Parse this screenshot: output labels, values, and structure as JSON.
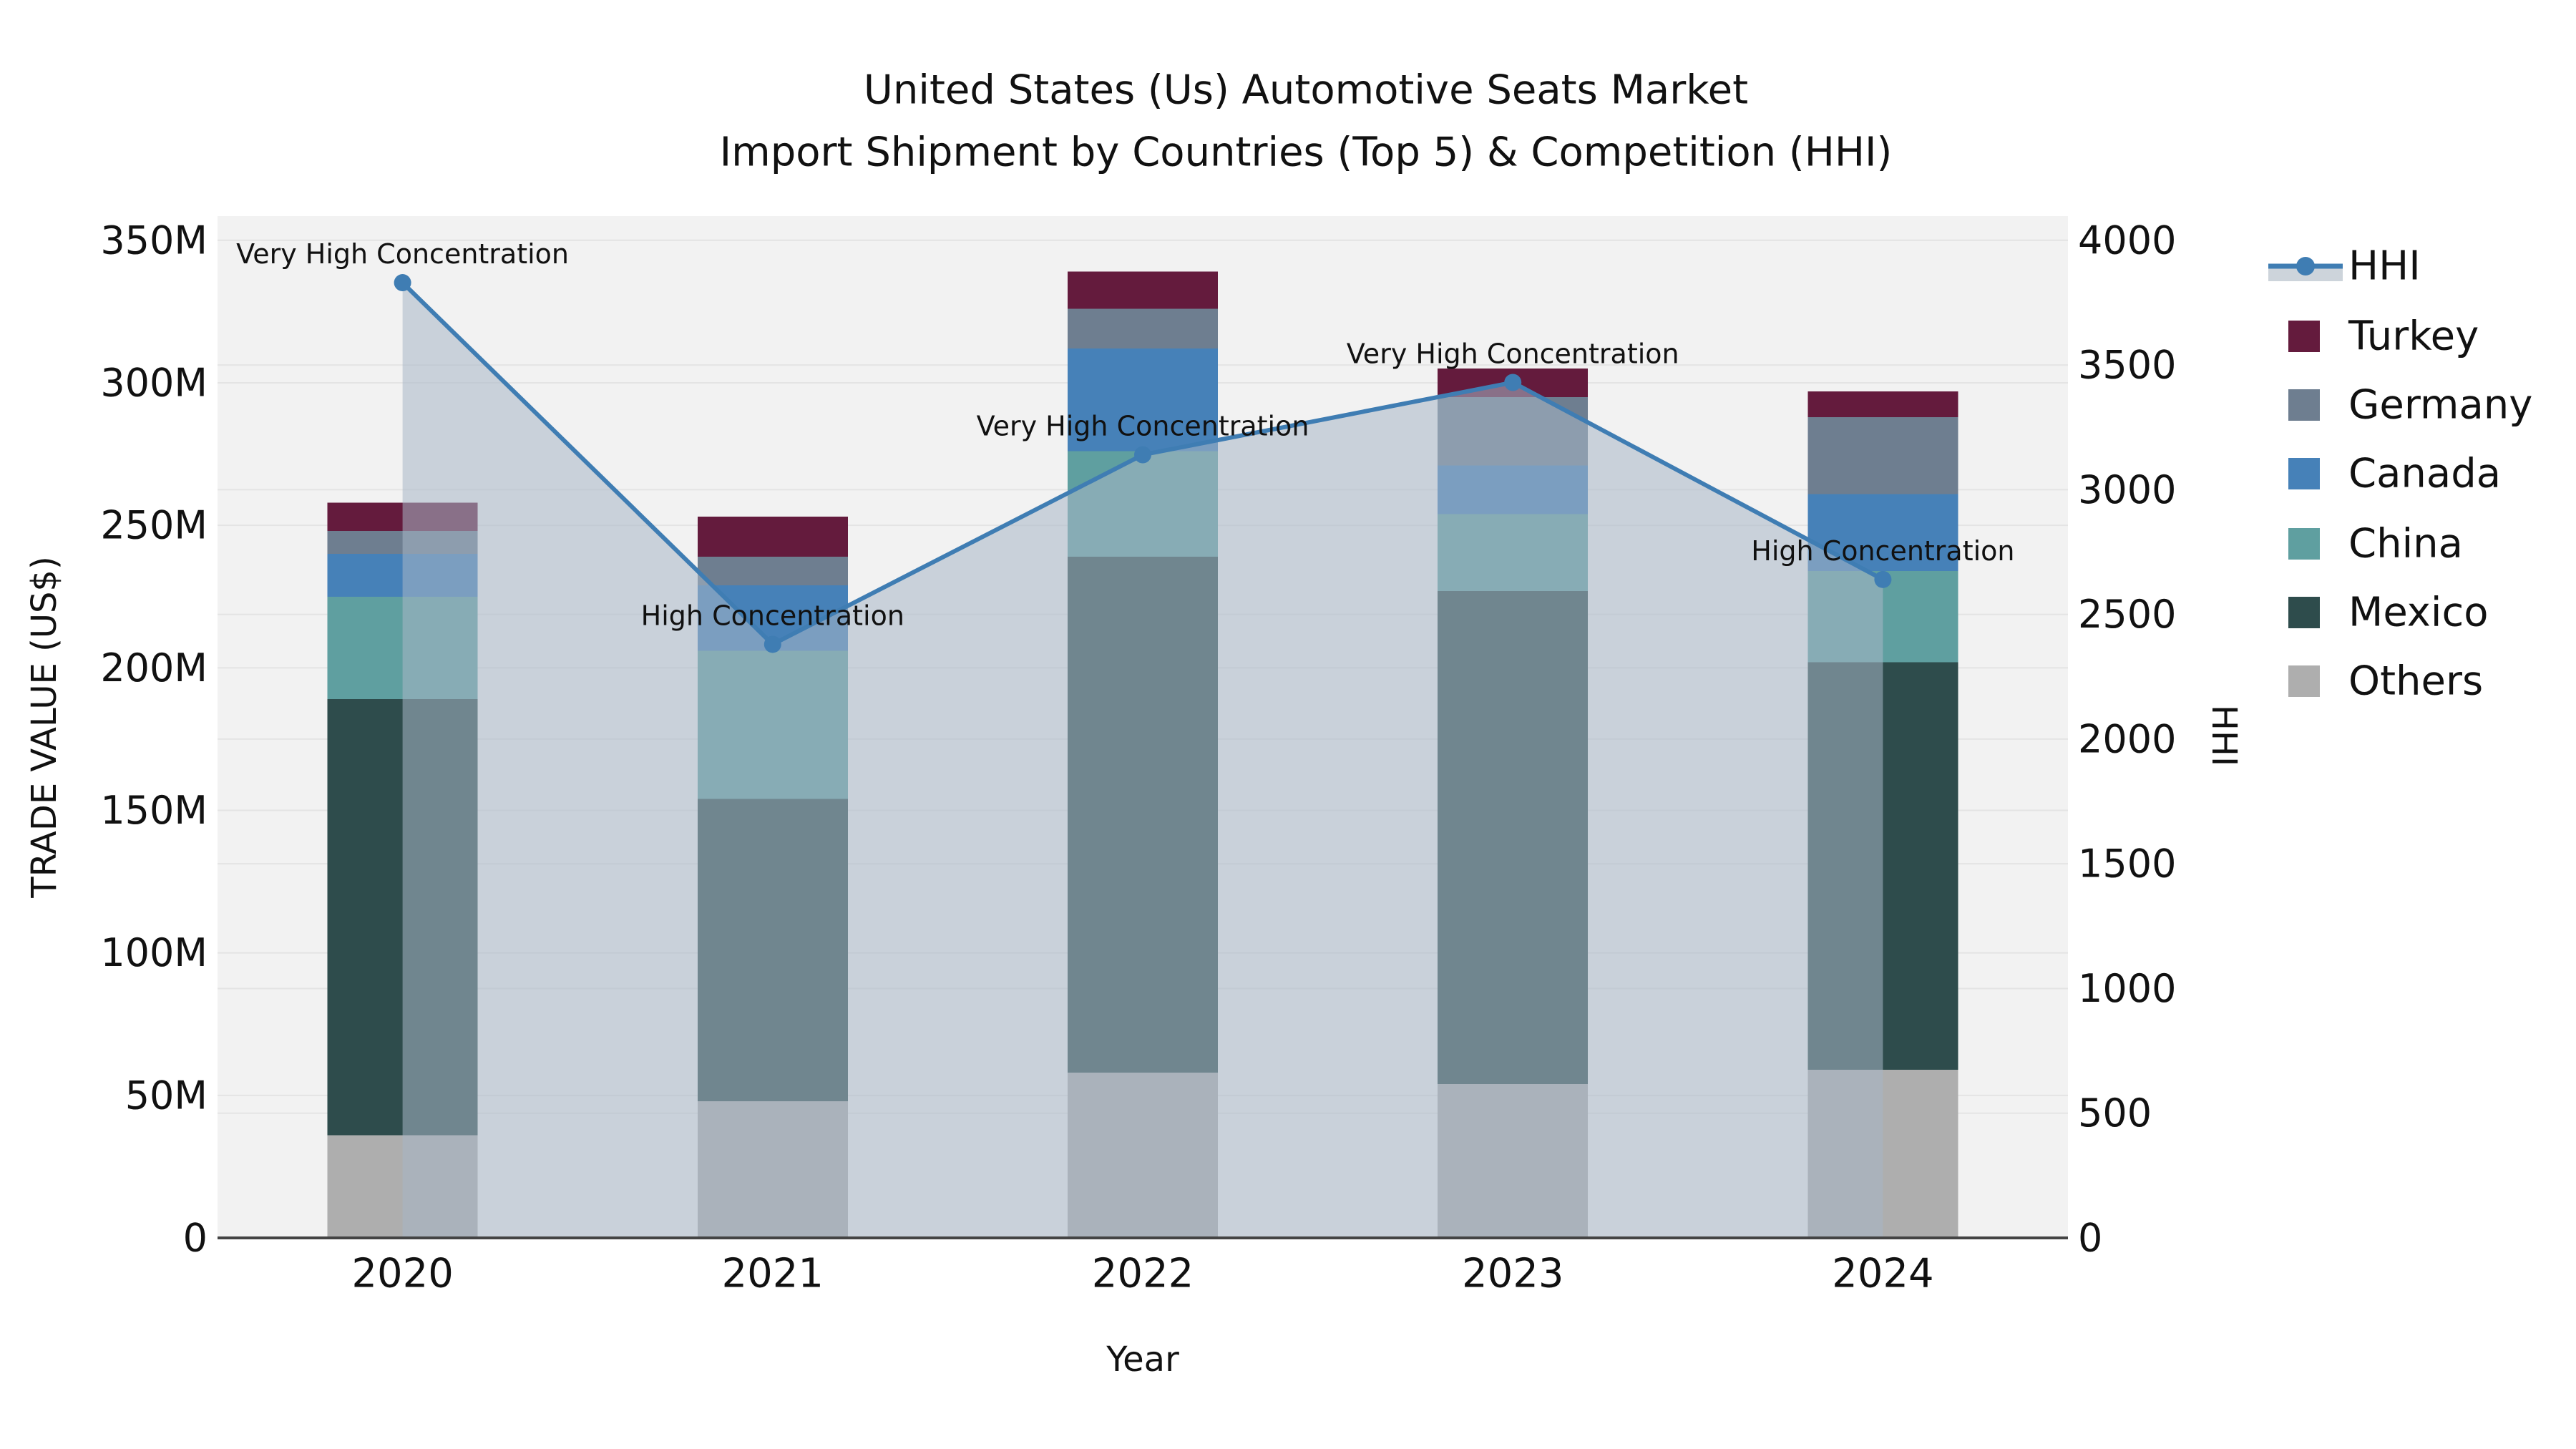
{
  "title": {
    "line1": "United States (Us) Automotive Seats Market",
    "line2": "Import Shipment by Countries (Top 5) & Competition (HHI)"
  },
  "axes": {
    "x": {
      "label": "Year"
    },
    "y_left": {
      "label": "TRADE VALUE (US$)",
      "tick_labels": [
        "0",
        "50M",
        "100M",
        "150M",
        "200M",
        "250M",
        "300M",
        "350M"
      ],
      "tick_values": [
        0,
        50,
        100,
        150,
        200,
        250,
        300,
        350
      ]
    },
    "y_right": {
      "label": "HHI",
      "tick_labels": [
        "0",
        "500",
        "1000",
        "1500",
        "2000",
        "2500",
        "3000",
        "3500",
        "4000"
      ],
      "tick_values": [
        0,
        500,
        1000,
        1500,
        2000,
        2500,
        3000,
        3500,
        4000
      ]
    }
  },
  "chart_data": {
    "type": "stacked-bar+line",
    "categories": [
      "2020",
      "2021",
      "2022",
      "2023",
      "2024"
    ],
    "bar_unit": "US$ millions (trade value)",
    "series": [
      {
        "name": "Others",
        "color": "#aeaeae",
        "values": [
          36,
          48,
          58,
          54,
          59
        ]
      },
      {
        "name": "Mexico",
        "color": "#2e4c4c",
        "values": [
          153,
          106,
          181,
          173,
          143
        ]
      },
      {
        "name": "China",
        "color": "#5f9fa0",
        "values": [
          36,
          52,
          37,
          27,
          32
        ]
      },
      {
        "name": "Canada",
        "color": "#4681b8",
        "values": [
          15,
          23,
          36,
          17,
          27
        ]
      },
      {
        "name": "Germany",
        "color": "#6e7e90",
        "values": [
          8,
          10,
          14,
          24,
          27
        ]
      },
      {
        "name": "Turkey",
        "color": "#641b3d",
        "values": [
          10,
          14,
          13,
          10,
          9
        ]
      }
    ],
    "bar_totals": [
      258,
      253,
      339,
      305,
      297
    ],
    "line": {
      "name": "HHI",
      "color": "#3f7db3",
      "values": [
        3830,
        2380,
        3140,
        3430,
        2640
      ]
    },
    "annotations": [
      "Very High Concentration",
      "High Concentration",
      "Very High Concentration",
      "Very High Concentration",
      "High Concentration"
    ],
    "y_left_range": [
      0,
      358.5
    ],
    "y_right_range": [
      0,
      4097
    ],
    "grid": true,
    "legend_position": "right",
    "legend_order": [
      "HHI",
      "Turkey",
      "Germany",
      "Canada",
      "China",
      "Mexico",
      "Others"
    ]
  },
  "colors": {
    "plot_bg": "#f2f2f2",
    "grid": "#e4e4e4",
    "axis_line": "#444444",
    "area_fill": "rgba(168,182,199,0.55)",
    "legend_band": "#cdd4db",
    "text": "#111111"
  }
}
